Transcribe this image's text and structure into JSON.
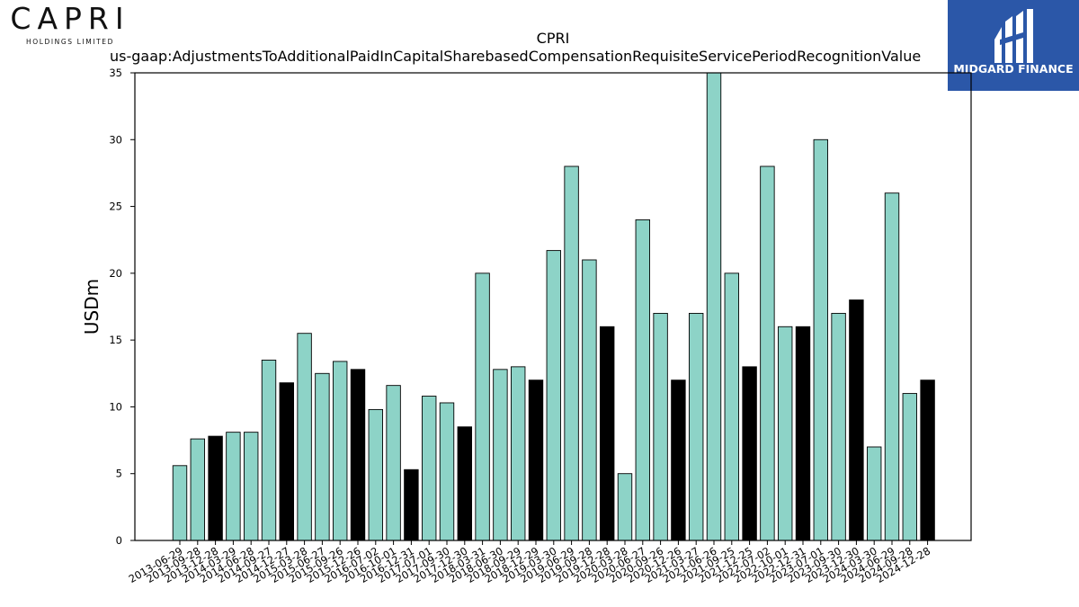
{
  "logos": {
    "left_brand": "CAPRI",
    "left_sub": "HOLDINGS LIMITED",
    "right_brand": "MIDGARD FINANCE"
  },
  "colors": {
    "bar_default": "#8dd3c7",
    "bar_highlight": "#000000",
    "bar_edge": "#000000",
    "logo_panel": "#2b57a8"
  },
  "chart_data": {
    "type": "bar",
    "title": "CPRI",
    "subtitle": "us-gaap:AdjustmentsToAdditionalPaidInCapitalSharebasedCompensationRequisiteServicePeriodRecognitionValue",
    "xlabel": "",
    "ylabel": "USDm",
    "ylim": [
      0,
      35
    ],
    "yticks": [
      0,
      5,
      10,
      15,
      20,
      25,
      30,
      35
    ],
    "grid": false,
    "categories": [
      "2013-06-29",
      "2013-09-28",
      "2013-12-28",
      "2014-03-29",
      "2014-06-28",
      "2014-09-27",
      "2014-12-27",
      "2015-03-28",
      "2015-06-27",
      "2015-09-26",
      "2015-12-26",
      "2016-07-02",
      "2016-10-01",
      "2016-12-31",
      "2017-07-01",
      "2017-09-30",
      "2017-12-30",
      "2018-03-31",
      "2018-06-30",
      "2018-09-29",
      "2018-12-29",
      "2019-03-30",
      "2019-06-29",
      "2019-09-28",
      "2019-12-28",
      "2020-03-28",
      "2020-06-27",
      "2020-09-26",
      "2020-12-26",
      "2021-03-27",
      "2021-06-26",
      "2021-09-25",
      "2021-12-25",
      "2022-07-02",
      "2022-10-01",
      "2022-12-31",
      "2023-07-01",
      "2023-09-30",
      "2023-12-30",
      "2024-03-30",
      "2024-06-29",
      "2024-09-28",
      "2024-12-28"
    ],
    "values": [
      5.6,
      7.6,
      7.8,
      8.1,
      8.1,
      13.5,
      11.8,
      15.5,
      12.5,
      13.4,
      12.8,
      9.8,
      11.6,
      5.3,
      10.8,
      10.3,
      8.5,
      20.0,
      12.8,
      13.0,
      12.0,
      21.7,
      28.0,
      21.0,
      16.0,
      5.0,
      24.0,
      17.0,
      12.0,
      17.0,
      35.0,
      20.0,
      13.0,
      28.0,
      16.0,
      16.0,
      30.0,
      17.0,
      18.0,
      7.0,
      26.0,
      11.0,
      12.0
    ],
    "highlight": [
      false,
      false,
      true,
      false,
      false,
      false,
      true,
      false,
      false,
      false,
      true,
      false,
      false,
      true,
      false,
      false,
      true,
      false,
      false,
      false,
      true,
      false,
      false,
      false,
      true,
      false,
      false,
      false,
      true,
      false,
      false,
      false,
      true,
      false,
      false,
      true,
      false,
      false,
      true,
      false,
      false,
      false,
      true
    ]
  }
}
